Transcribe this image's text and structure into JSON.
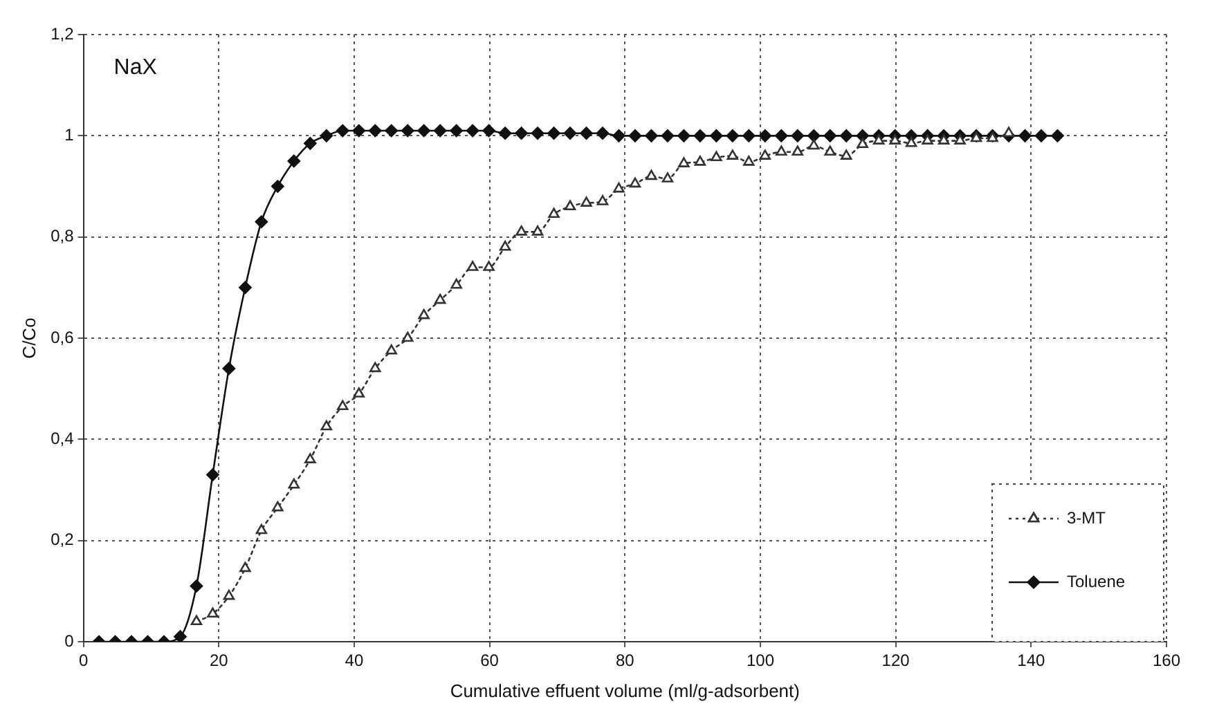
{
  "chart_data": {
    "type": "line",
    "xlabel": "Cumulative effuent volume (ml/g-adsorbent)",
    "ylabel": "C/Co",
    "annotations": [
      "NaX"
    ],
    "xlim": [
      0,
      160
    ],
    "xticks": [
      0,
      20,
      40,
      60,
      80,
      100,
      120,
      140,
      160
    ],
    "ylim": [
      0,
      1.2
    ],
    "yticks": [
      0,
      {
        "value": 0.2,
        "label": "0,2"
      },
      {
        "value": 0.4,
        "label": "0,4"
      },
      {
        "value": 0.6,
        "label": "0,6"
      },
      {
        "value": 0.8,
        "label": "0,8"
      },
      1,
      {
        "value": 1.2,
        "label": "1,2"
      }
    ],
    "grid": true,
    "legend": "bottom right",
    "series": [
      {
        "name": "3-MT",
        "color": "#333333",
        "marker": "triangle",
        "line_style": "dotted",
        "x": [
          16.7,
          19.1,
          21.5,
          23.9,
          26.3,
          28.7,
          31.1,
          33.5,
          35.9,
          38.3,
          40.7,
          43.1,
          45.5,
          47.9,
          50.3,
          52.7,
          55.1,
          57.5,
          59.9,
          62.3,
          64.7,
          67.1,
          69.5,
          71.9,
          74.3,
          76.7,
          79.1,
          81.5,
          83.9,
          86.3,
          88.7,
          91.1,
          93.5,
          95.9,
          98.3,
          100.7,
          103.1,
          105.5,
          107.9,
          110.3,
          112.7,
          115.1,
          117.5,
          119.9,
          122.3,
          124.7,
          127.1,
          129.5,
          131.9,
          134.3,
          136.7
        ],
        "values": [
          0.04,
          0.055,
          0.09,
          0.145,
          0.22,
          0.265,
          0.31,
          0.36,
          0.425,
          0.465,
          0.49,
          0.54,
          0.575,
          0.6,
          0.645,
          0.675,
          0.705,
          0.74,
          0.74,
          0.78,
          0.81,
          0.81,
          0.845,
          0.86,
          0.867,
          0.87,
          0.895,
          0.905,
          0.92,
          0.915,
          0.945,
          0.948,
          0.957,
          0.96,
          0.948,
          0.96,
          0.968,
          0.968,
          0.98,
          0.968,
          0.96,
          0.983,
          0.99,
          0.99,
          0.985,
          0.99,
          0.99,
          0.99,
          0.995,
          0.995,
          1.005
        ]
      },
      {
        "name": "Toluene",
        "color": "#111111",
        "marker": "diamond",
        "line_style": "solid",
        "x": [
          2.3,
          4.7,
          7.1,
          9.5,
          11.9,
          14.3,
          16.7,
          19.1,
          21.5,
          23.9,
          26.3,
          28.7,
          31.1,
          33.5,
          35.9,
          38.3,
          40.7,
          43.1,
          45.5,
          47.9,
          50.3,
          52.7,
          55.1,
          57.5,
          59.9,
          62.3,
          64.7,
          67.1,
          69.5,
          71.9,
          74.3,
          76.7,
          79.1,
          81.5,
          83.9,
          86.3,
          88.7,
          91.1,
          93.5,
          95.9,
          98.3,
          100.7,
          103.1,
          105.5,
          107.9,
          110.3,
          112.7,
          115.1,
          117.5,
          119.9,
          122.3,
          124.7,
          127.1,
          129.5,
          131.9,
          134.3,
          136.7,
          139.1,
          141.5,
          143.9
        ],
        "values": [
          0,
          0,
          0,
          0,
          0,
          0.01,
          0.11,
          0.33,
          0.54,
          0.7,
          0.83,
          0.9,
          0.95,
          0.985,
          1.0,
          1.01,
          1.01,
          1.01,
          1.01,
          1.01,
          1.01,
          1.01,
          1.01,
          1.01,
          1.01,
          1.005,
          1.005,
          1.005,
          1.005,
          1.005,
          1.005,
          1.005,
          1.0,
          1.0,
          1.0,
          1.0,
          1.0,
          1.0,
          1.0,
          1.0,
          1.0,
          1.0,
          1.0,
          1.0,
          1.0,
          1.0,
          1.0,
          1.0,
          1.0,
          1.0,
          1.0,
          1.0,
          1.0,
          1.0,
          1.0,
          1.0,
          1.0,
          1.0,
          1.0,
          1.0
        ]
      }
    ]
  }
}
